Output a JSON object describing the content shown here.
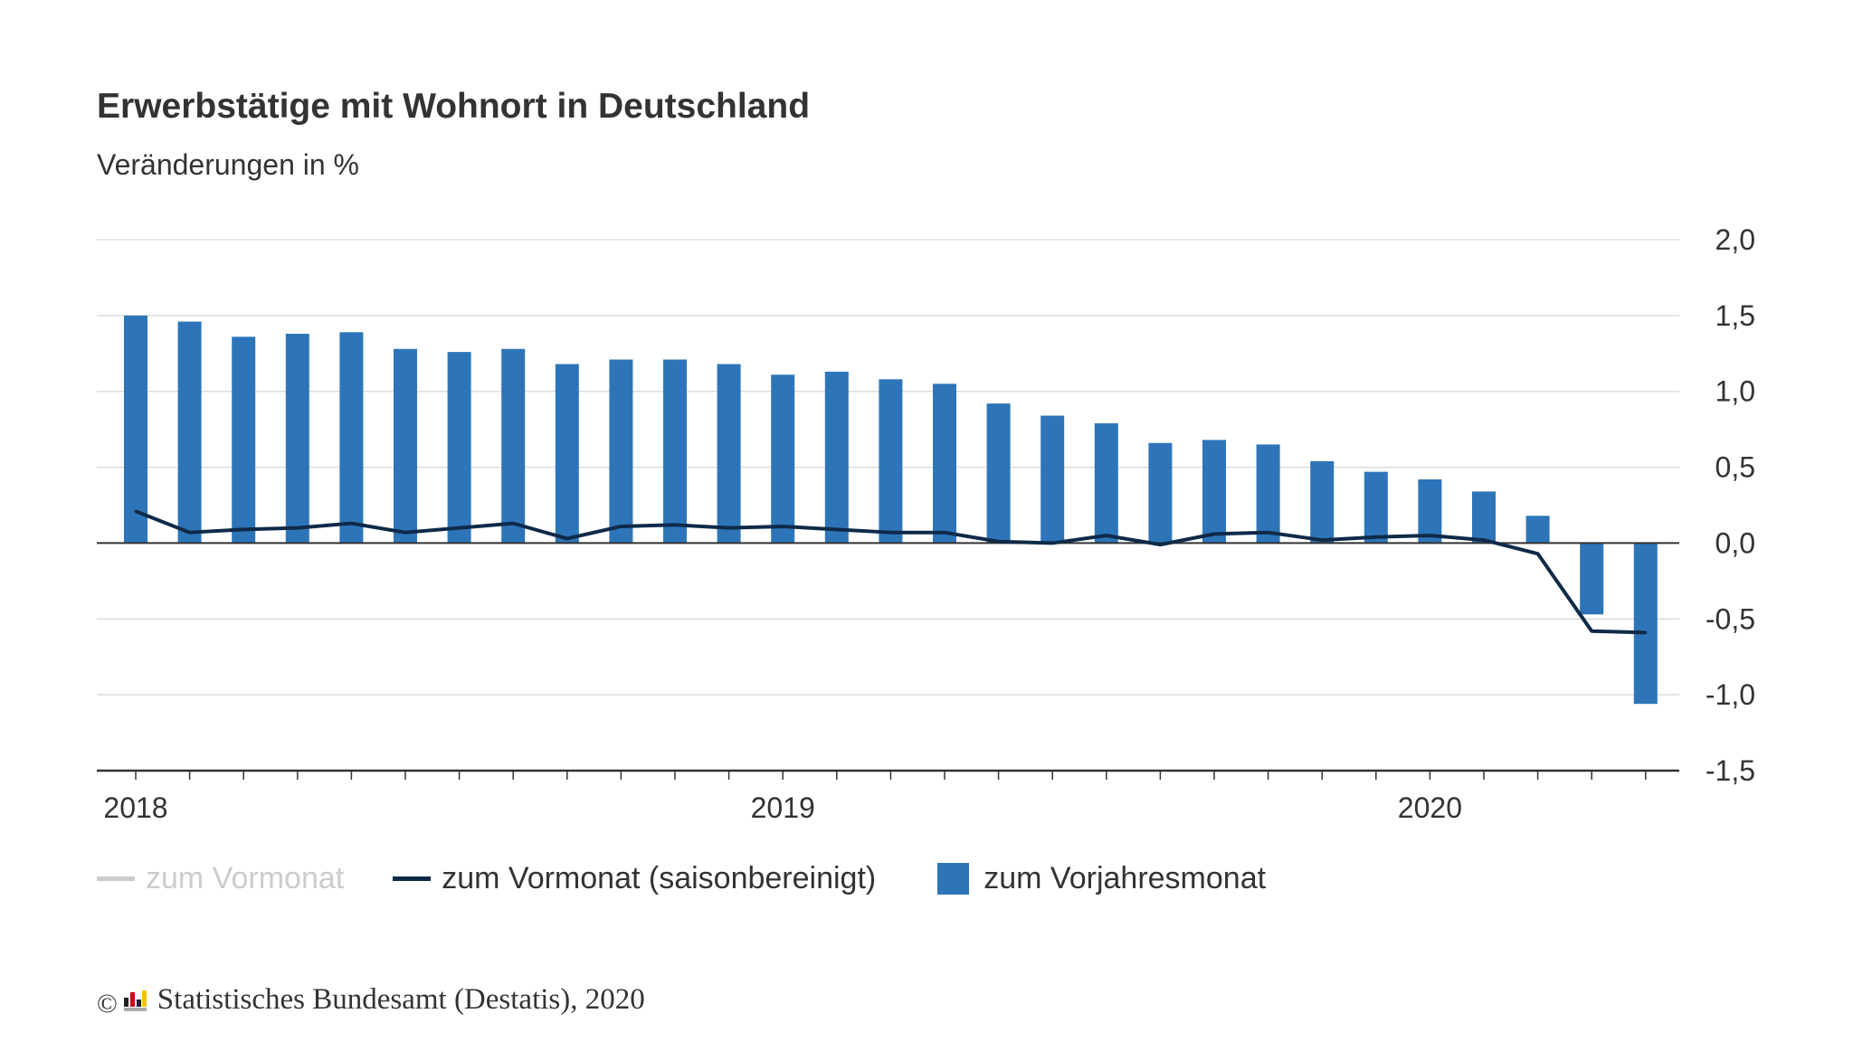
{
  "header": {
    "title": "Erwerbstätige mit Wohnort in Deutschland",
    "subtitle": "Veränderungen in %"
  },
  "legend": {
    "items": [
      {
        "label": "zum Vormonat",
        "color": "#cccccc",
        "kind": "line",
        "state": "inactive"
      },
      {
        "label": "zum Vormonat (saisonbereinigt)",
        "color": "#0f2a48",
        "kind": "line",
        "state": "active"
      },
      {
        "label": "zum Vorjahresmonat",
        "color": "#2d75b8",
        "kind": "box",
        "state": "active"
      }
    ]
  },
  "footer": {
    "copyright_symbol": "©",
    "source": "Statistisches Bundesamt (Destatis), 2020"
  },
  "chart_data": {
    "type": "bar",
    "title": "Erwerbstätige mit Wohnort in Deutschland",
    "subtitle": "Veränderungen in %",
    "x_tick_labels": [
      "2018",
      "2019",
      "2020"
    ],
    "x_tick_positions": [
      0,
      12,
      24
    ],
    "y_tick_labels": [
      "2,0",
      "1,5",
      "1,0",
      "0,5",
      "0,0",
      "-0,5",
      "-1,0",
      "-1,5"
    ],
    "ylim": [
      -1.5,
      2.0
    ],
    "y_axis_side": "right",
    "grid": true,
    "legend_position": "bottom-left",
    "categories": [
      "2018-01",
      "2018-02",
      "2018-03",
      "2018-04",
      "2018-05",
      "2018-06",
      "2018-07",
      "2018-08",
      "2018-09",
      "2018-10",
      "2018-11",
      "2018-12",
      "2019-01",
      "2019-02",
      "2019-03",
      "2019-04",
      "2019-05",
      "2019-06",
      "2019-07",
      "2019-08",
      "2019-09",
      "2019-10",
      "2019-11",
      "2019-12",
      "2020-01",
      "2020-02",
      "2020-03",
      "2020-04",
      "2020-05"
    ],
    "series": [
      {
        "name": "zum Vorjahresmonat",
        "type": "bar",
        "color": "#2d75b8",
        "values": [
          1.5,
          1.46,
          1.36,
          1.38,
          1.39,
          1.28,
          1.26,
          1.28,
          1.18,
          1.21,
          1.21,
          1.18,
          1.11,
          1.13,
          1.08,
          1.05,
          0.92,
          0.84,
          0.79,
          0.66,
          0.68,
          0.65,
          0.54,
          0.47,
          0.42,
          0.34,
          0.18,
          -0.47,
          -1.06
        ]
      },
      {
        "name": "zum Vormonat (saisonbereinigt)",
        "type": "line",
        "color": "#0f2a48",
        "values": [
          0.21,
          0.07,
          0.09,
          0.1,
          0.13,
          0.07,
          0.1,
          0.13,
          0.03,
          0.11,
          0.12,
          0.1,
          0.11,
          0.09,
          0.07,
          0.07,
          0.01,
          0.0,
          0.05,
          -0.01,
          0.06,
          0.07,
          0.02,
          0.04,
          0.05,
          0.02,
          -0.07,
          -0.58,
          -0.59
        ]
      }
    ]
  }
}
